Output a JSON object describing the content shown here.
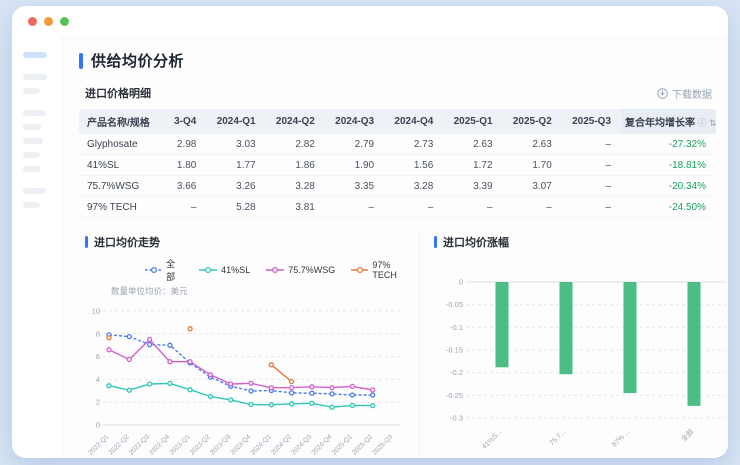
{
  "window": {
    "traffic_lights": {
      "close": "#ee6a5f",
      "minimize": "#f29a38",
      "zoom": "#58c15a"
    }
  },
  "page": {
    "title": "供给均价分析"
  },
  "table_section": {
    "label": "进口价格明细",
    "download_label": "下载数据",
    "info_icon": "ⓘ",
    "sort_icon": "⇅",
    "columns": [
      "产品名称/规格",
      "3-Q4",
      "2024-Q1",
      "2024-Q2",
      "2024-Q3",
      "2024-Q4",
      "2025-Q1",
      "2025-Q2",
      "2025-Q3",
      "复合年均增长率"
    ],
    "rows": [
      {
        "name": "Glyphosate",
        "values": [
          "2.98",
          "3.03",
          "2.82",
          "2.79",
          "2.73",
          "2.63",
          "2.63",
          "–"
        ],
        "cagr": "-27.32%"
      },
      {
        "name": "41%SL",
        "values": [
          "1.80",
          "1.77",
          "1.86",
          "1.90",
          "1.56",
          "1.72",
          "1.70",
          "–"
        ],
        "cagr": "-18.81%"
      },
      {
        "name": "75.7%WSG",
        "values": [
          "3.66",
          "3.26",
          "3.28",
          "3.35",
          "3.28",
          "3.39",
          "3.07",
          "–"
        ],
        "cagr": "-20.34%"
      },
      {
        "name": "97% TECH",
        "values": [
          "–",
          "5.28",
          "3.81",
          "–",
          "–",
          "–",
          "–",
          "–"
        ],
        "cagr": "-24.50%"
      }
    ],
    "cagr_color": "#18a35d"
  },
  "chart_data": [
    {
      "type": "line",
      "title": "进口均价走势",
      "subtitle": "数量单位均价：美元",
      "categories": [
        "2022-Q1",
        "2022-Q2",
        "2022-Q3",
        "2022-Q4",
        "2023-Q1",
        "2023-Q2",
        "2023-Q3",
        "2023-Q4",
        "2024-Q1",
        "2024-Q2",
        "2024-Q3",
        "2024-Q4",
        "2025-Q1",
        "2025-Q2",
        "2025-Q3"
      ],
      "series": [
        {
          "name": "全部",
          "color": "#4a7cec",
          "dashed": true,
          "values": [
            7.9,
            7.75,
            7.05,
            7.0,
            5.45,
            4.2,
            3.4,
            2.98,
            3.03,
            2.82,
            2.79,
            2.73,
            2.63,
            2.63,
            null
          ]
        },
        {
          "name": "41%SL",
          "color": "#2ec7b5",
          "dashed": false,
          "values": [
            3.45,
            3.05,
            3.6,
            3.65,
            3.1,
            2.5,
            2.2,
            1.8,
            1.77,
            1.86,
            1.9,
            1.56,
            1.72,
            1.7,
            null
          ]
        },
        {
          "name": "75.7%WSG",
          "color": "#d45fc9",
          "dashed": false,
          "values": [
            6.6,
            5.75,
            7.5,
            5.55,
            5.55,
            4.4,
            3.6,
            3.66,
            3.26,
            3.28,
            3.35,
            3.28,
            3.39,
            3.07,
            null
          ]
        },
        {
          "name": "97% TECH",
          "color": "#e5793b",
          "dashed": false,
          "values": [
            7.65,
            null,
            null,
            null,
            8.45,
            null,
            null,
            null,
            5.28,
            3.81,
            null,
            null,
            null,
            null,
            null
          ]
        }
      ],
      "ylim": [
        0,
        10
      ],
      "yticks": [
        0,
        2,
        4,
        6,
        8,
        10
      ],
      "grid": true,
      "legend_position": "top"
    },
    {
      "type": "bar",
      "title": "进口均价涨幅",
      "categories": [
        "41%S...",
        "75.7...",
        "97% ...",
        "全部"
      ],
      "values": [
        -0.1881,
        -0.2034,
        -0.245,
        -0.2732
      ],
      "bar_color": "#4dbd86",
      "ylim": [
        -0.3,
        0
      ],
      "ytick_labels": [
        "0",
        "-0.05",
        "-0.1",
        "-0.15",
        "-0.2",
        "-0.25",
        "-0.3"
      ],
      "ytick_values": [
        0,
        -0.05,
        -0.1,
        -0.15,
        -0.2,
        -0.25,
        -0.3
      ],
      "grid": true
    }
  ]
}
